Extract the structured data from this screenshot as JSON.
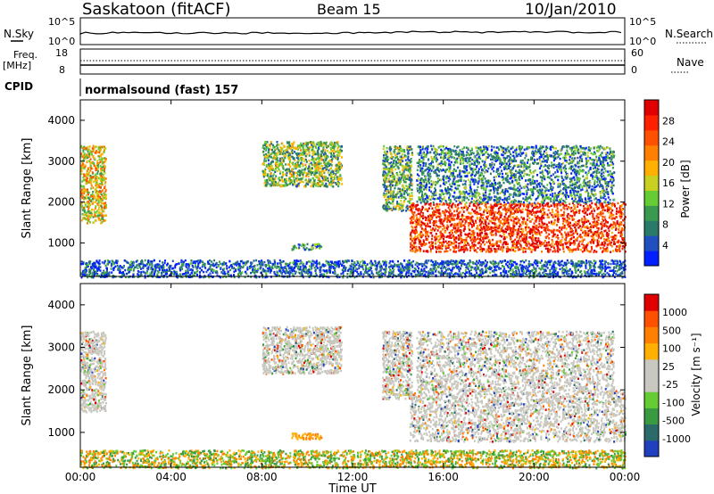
{
  "header": {
    "station": "Saskatoon (fitACF)",
    "beam": "Beam 15",
    "date": "10/Jan/2010"
  },
  "status": {
    "nsky_label": "N.Sky",
    "nsearch_label": "N.Search",
    "freq_label_1": "Freq.",
    "freq_label_2": "[MHz]",
    "nave_label": "Nave",
    "cpid_label": "CPID",
    "cpid_value": "normalsound (fast) 157",
    "noise_ticks": [
      "10^5",
      "10^0"
    ],
    "freq_ticks": [
      "18",
      "8"
    ],
    "nave_ticks": [
      "60",
      "0"
    ]
  },
  "chart_data": [
    {
      "type": "heatmap",
      "ylabel": "Slant Range [km]",
      "xlabel": "",
      "x_ticks": [
        "00:00",
        "04:00",
        "08:00",
        "12:00",
        "16:00",
        "20:00",
        "00:00"
      ],
      "xlim_hours": [
        0,
        24
      ],
      "y_ticks": [
        1000,
        2000,
        3000,
        4000
      ],
      "ylim": [
        180,
        4500
      ],
      "colorbar": {
        "label": "Power [dB]",
        "ticks": [
          "28",
          "24",
          "20",
          "16",
          "12",
          "8",
          "4"
        ],
        "colors": [
          "#0020ff",
          "#2050c0",
          "#2a7a6a",
          "#3a9a50",
          "#66cc33",
          "#c8d020",
          "#ffb000",
          "#ff8000",
          "#ff5000",
          "#ff2000",
          "#e00000"
        ]
      },
      "scatter_regions": [
        {
          "t0": 0.0,
          "t1": 1.1,
          "r0": 1500,
          "r1": 3400,
          "level": 0.55
        },
        {
          "t0": 8.0,
          "t1": 11.5,
          "r0": 2400,
          "r1": 3500,
          "level": 0.4
        },
        {
          "t0": 9.3,
          "t1": 10.6,
          "r0": 850,
          "r1": 1000,
          "level": 0.3
        },
        {
          "t0": 13.3,
          "t1": 14.6,
          "r0": 1800,
          "r1": 3400,
          "level": 0.35
        },
        {
          "t0": 14.5,
          "t1": 24.0,
          "r0": 800,
          "r1": 2000,
          "level": 0.85
        },
        {
          "t0": 14.8,
          "t1": 23.5,
          "r0": 2000,
          "r1": 3400,
          "level": 0.25
        },
        {
          "t0": 0.0,
          "t1": 24.0,
          "r0": 180,
          "r1": 600,
          "level": 0.15
        }
      ]
    },
    {
      "type": "heatmap",
      "ylabel": "Slant Range [km]",
      "xlabel": "Time UT",
      "x_ticks": [
        "00:00",
        "04:00",
        "08:00",
        "12:00",
        "16:00",
        "20:00",
        "00:00"
      ],
      "xlim_hours": [
        0,
        24
      ],
      "y_ticks": [
        1000,
        2000,
        3000,
        4000
      ],
      "ylim": [
        180,
        4500
      ],
      "colorbar": {
        "label": "Velocity [m s⁻¹]",
        "ticks": [
          "1000",
          "500",
          "100",
          "25",
          "-25",
          "-100",
          "-500",
          "-1000"
        ],
        "colors": [
          "#2040c0",
          "#2a6a6a",
          "#3a9a40",
          "#66cc33",
          "#c8c8c0",
          "#c8c8c0",
          "#ffb000",
          "#ff8000",
          "#ff5000",
          "#e00000"
        ]
      },
      "scatter_regions": [
        {
          "t0": 0.0,
          "t1": 1.1,
          "r0": 1500,
          "r1": 3400,
          "level": 0.5
        },
        {
          "t0": 8.0,
          "t1": 11.5,
          "r0": 2400,
          "r1": 3500,
          "level": 0.5
        },
        {
          "t0": 9.3,
          "t1": 10.6,
          "r0": 850,
          "r1": 1000,
          "level": 0.85
        },
        {
          "t0": 13.3,
          "t1": 14.6,
          "r0": 1800,
          "r1": 3400,
          "level": 0.5
        },
        {
          "t0": 14.5,
          "t1": 24.0,
          "r0": 800,
          "r1": 2000,
          "level": 0.5
        },
        {
          "t0": 14.8,
          "t1": 23.5,
          "r0": 2000,
          "r1": 3400,
          "level": 0.4
        },
        {
          "t0": 0.0,
          "t1": 24.0,
          "r0": 180,
          "r1": 600,
          "level": 0.7
        }
      ]
    }
  ]
}
